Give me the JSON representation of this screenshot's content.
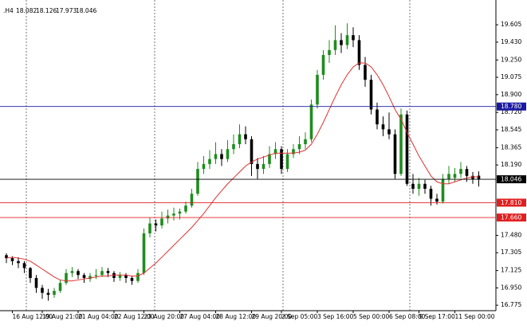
{
  "chart_data": {
    "type": "candlestick",
    "header": {
      "symbol": ".H4",
      "values": [
        18.082,
        18.126,
        17.973,
        18.046
      ]
    },
    "bull_color": "#1f8c1f",
    "bear_color": "#000000",
    "ma_color": "#e03030",
    "ylim": [
      16.72,
      19.855
    ],
    "yticks": [
      19.605,
      {
        "value": 19.43,
        "label": "19.430"
      },
      {
        "value": 19.25,
        "label": "19.250"
      },
      19.075,
      {
        "value": 18.9,
        "label": "18.900"
      },
      {
        "value": 18.72,
        "label": "18.720"
      },
      18.545,
      18.365,
      {
        "value": 18.19,
        "label": "18.190"
      },
      {
        "value": 17.48,
        "label": "17.480"
      },
      17.305,
      17.125,
      {
        "value": 16.95,
        "label": "16.950"
      },
      16.775
    ],
    "levels": [
      {
        "value": 18.78,
        "label": "18.780",
        "color": "#1a1aa0"
      },
      {
        "value": 18.046,
        "label": "18.046",
        "color": "#000000"
      },
      {
        "value": 17.81,
        "label": "17.810",
        "color": "#e02020"
      },
      {
        "value": 17.66,
        "label": "17.660",
        "color": "#e02020"
      }
    ],
    "categories": [
      null,
      "16 Aug 12:00",
      null,
      null,
      null,
      null,
      "19 Aug 21:00",
      null,
      null,
      null,
      null,
      null,
      "21 Aug 04:00",
      null,
      null,
      null,
      null,
      null,
      "22 Aug 12:00",
      null,
      null,
      null,
      null,
      "23 Aug 20:00",
      null,
      null,
      null,
      null,
      null,
      "27 Aug 04:00",
      null,
      null,
      null,
      null,
      null,
      "28 Aug 12:00",
      null,
      null,
      null,
      null,
      null,
      "29 Aug 20:00",
      null,
      null,
      null,
      null,
      "2 Sep 05:00",
      null,
      null,
      null,
      null,
      null,
      "3 Sep 16:00",
      null,
      null,
      null,
      null,
      null,
      "5 Sep 00:00",
      null,
      null,
      null,
      null,
      null,
      "6 Sep 08:00",
      null,
      null,
      null,
      null,
      "9 Sep 17:00",
      null,
      null,
      null,
      null,
      null,
      "11 Sep 00:00",
      null,
      null,
      null,
      null
    ],
    "candles": [
      [
        17.28,
        17.3,
        17.2,
        17.25
      ],
      [
        17.25,
        17.27,
        17.18,
        17.22
      ],
      [
        17.22,
        17.26,
        17.15,
        17.2
      ],
      [
        17.2,
        17.22,
        17.1,
        17.15
      ],
      [
        17.15,
        17.16,
        17.0,
        17.05
      ],
      [
        17.05,
        17.08,
        16.9,
        16.95
      ],
      [
        16.95,
        16.98,
        16.84,
        16.9
      ],
      [
        16.9,
        16.94,
        16.82,
        16.88
      ],
      [
        16.88,
        16.95,
        16.85,
        16.92
      ],
      [
        16.92,
        17.03,
        16.9,
        17.0
      ],
      [
        17.0,
        17.14,
        16.98,
        17.1
      ],
      [
        17.1,
        17.16,
        17.06,
        17.12
      ],
      [
        17.12,
        17.14,
        17.04,
        17.08
      ],
      [
        17.08,
        17.1,
        17.0,
        17.05
      ],
      [
        17.04,
        17.1,
        17.01,
        17.07
      ],
      [
        17.07,
        17.14,
        17.04,
        17.08
      ],
      [
        17.08,
        17.16,
        17.06,
        17.12
      ],
      [
        17.12,
        17.15,
        17.06,
        17.1
      ],
      [
        17.1,
        17.12,
        17.01,
        17.05
      ],
      [
        17.05,
        17.11,
        17.02,
        17.08
      ],
      [
        17.08,
        17.1,
        17.0,
        17.05
      ],
      [
        17.05,
        17.07,
        16.98,
        17.02
      ],
      [
        17.02,
        17.14,
        17.0,
        17.1
      ],
      [
        17.1,
        17.55,
        17.08,
        17.5
      ],
      [
        17.5,
        17.66,
        17.46,
        17.6
      ],
      [
        17.6,
        17.64,
        17.52,
        17.58
      ],
      [
        17.58,
        17.72,
        17.55,
        17.65
      ],
      [
        17.65,
        17.74,
        17.6,
        17.68
      ],
      [
        17.68,
        17.76,
        17.63,
        17.7
      ],
      [
        17.7,
        17.75,
        17.64,
        17.72
      ],
      [
        17.72,
        17.82,
        17.7,
        17.78
      ],
      [
        17.78,
        17.95,
        17.76,
        17.9
      ],
      [
        17.9,
        18.22,
        17.88,
        18.15
      ],
      [
        18.15,
        18.28,
        18.1,
        18.2
      ],
      [
        18.2,
        18.34,
        18.15,
        18.25
      ],
      [
        18.25,
        18.42,
        18.2,
        18.3
      ],
      [
        18.3,
        18.35,
        18.18,
        18.25
      ],
      [
        18.25,
        18.44,
        18.22,
        18.35
      ],
      [
        18.35,
        18.5,
        18.3,
        18.4
      ],
      [
        18.4,
        18.6,
        18.36,
        18.5
      ],
      [
        18.5,
        18.58,
        18.4,
        18.45
      ],
      [
        18.45,
        18.48,
        18.08,
        18.2
      ],
      [
        18.2,
        18.26,
        18.05,
        18.15
      ],
      [
        18.15,
        18.28,
        18.1,
        18.2
      ],
      [
        18.2,
        18.38,
        18.16,
        18.3
      ],
      [
        18.3,
        18.42,
        18.25,
        18.35
      ],
      [
        18.35,
        18.38,
        18.1,
        18.15
      ],
      [
        18.15,
        18.35,
        18.12,
        18.3
      ],
      [
        18.3,
        18.4,
        18.26,
        18.35
      ],
      [
        18.35,
        18.48,
        18.3,
        18.4
      ],
      [
        18.4,
        18.52,
        18.35,
        18.45
      ],
      [
        18.45,
        18.85,
        18.42,
        18.8
      ],
      [
        18.8,
        19.15,
        18.76,
        19.1
      ],
      [
        19.1,
        19.35,
        19.05,
        19.3
      ],
      [
        19.3,
        19.45,
        19.22,
        19.35
      ],
      [
        19.35,
        19.6,
        19.3,
        19.45
      ],
      [
        19.45,
        19.52,
        19.32,
        19.4
      ],
      [
        19.4,
        19.62,
        19.36,
        19.5
      ],
      [
        19.5,
        19.58,
        19.38,
        19.45
      ],
      [
        19.45,
        19.5,
        19.15,
        19.2
      ],
      [
        19.2,
        19.28,
        18.98,
        19.05
      ],
      [
        19.05,
        19.1,
        18.7,
        18.75
      ],
      [
        18.75,
        18.82,
        18.55,
        18.6
      ],
      [
        18.6,
        18.68,
        18.48,
        18.55
      ],
      [
        18.55,
        18.72,
        18.45,
        18.5
      ],
      [
        18.5,
        18.55,
        18.05,
        18.1
      ],
      [
        18.1,
        18.76,
        18.08,
        18.7
      ],
      [
        18.7,
        18.74,
        17.98,
        18.0
      ],
      [
        18.0,
        18.1,
        17.9,
        17.95
      ],
      [
        17.95,
        18.06,
        17.88,
        18.0
      ],
      [
        18.0,
        18.04,
        17.9,
        17.95
      ],
      [
        17.95,
        17.98,
        17.78,
        17.85
      ],
      [
        17.85,
        17.9,
        17.79,
        17.82
      ],
      [
        17.82,
        18.1,
        17.8,
        18.05
      ],
      [
        18.05,
        18.18,
        18.0,
        18.1
      ],
      [
        18.06,
        18.16,
        18.02,
        18.1
      ],
      [
        18.1,
        18.22,
        18.06,
        18.15
      ],
      [
        18.15,
        18.18,
        18.02,
        18.08
      ],
      [
        18.08,
        18.12,
        18.0,
        18.05
      ],
      [
        18.082,
        18.126,
        17.973,
        18.046
      ]
    ],
    "ma": [
      17.25,
      17.26,
      17.25,
      17.24,
      17.22,
      17.18,
      17.14,
      17.1,
      17.06,
      17.03,
      17.02,
      17.02,
      17.03,
      17.04,
      17.05,
      17.06,
      17.07,
      17.07,
      17.08,
      17.08,
      17.08,
      17.07,
      17.07,
      17.1,
      17.15,
      17.2,
      17.26,
      17.32,
      17.38,
      17.44,
      17.5,
      17.56,
      17.63,
      17.7,
      17.78,
      17.86,
      17.93,
      18.0,
      18.06,
      18.12,
      18.18,
      18.22,
      18.25,
      18.27,
      18.29,
      18.31,
      18.31,
      18.31,
      18.31,
      18.32,
      18.34,
      18.4,
      18.5,
      18.62,
      18.75,
      18.88,
      19.0,
      19.1,
      19.18,
      19.22,
      19.22,
      19.18,
      19.1,
      19.0,
      18.88,
      18.75,
      18.65,
      18.52,
      18.4,
      18.28,
      18.18,
      18.08,
      18.02,
      18.0,
      18.0,
      18.02,
      18.04,
      18.06,
      18.07,
      18.07
    ]
  }
}
